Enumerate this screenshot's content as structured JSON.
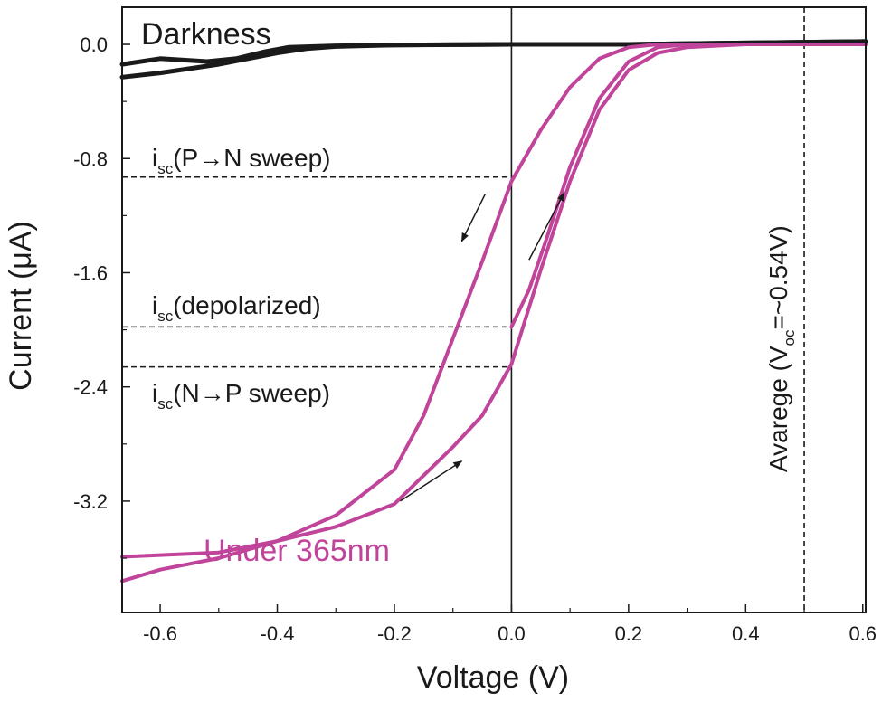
{
  "chart_data": {
    "type": "line",
    "title": "",
    "xlabel": "Voltage (V)",
    "ylabel": "Current (μA)",
    "xlim": [
      -0.665,
      0.605
    ],
    "ylim": [
      -3.98,
      0.26
    ],
    "xticks": [
      -0.6,
      -0.4,
      -0.2,
      0.0,
      0.2,
      0.4,
      0.6
    ],
    "xtick_labels": [
      "-0.6",
      "-0.4",
      "-0.2",
      "0.0",
      "0.2",
      "0.4",
      "0.6"
    ],
    "yticks": [
      0.0,
      -0.8,
      -1.6,
      -2.4,
      -3.2
    ],
    "ytick_labels": [
      "0.0",
      "-0.8",
      "-1.6",
      "-2.4",
      "-3.2"
    ],
    "grid": false,
    "colors": {
      "darkness": "#1a1a1a",
      "uv": "#c0449a"
    },
    "series": [
      {
        "label": "Darkness",
        "x": [
          -0.665,
          -0.6,
          -0.5,
          -0.45,
          -0.4,
          -0.35,
          -0.3,
          -0.2,
          -0.1,
          0.0,
          0.2,
          0.4,
          0.605
        ],
        "y": [
          -0.23,
          -0.2,
          -0.14,
          -0.1,
          -0.06,
          -0.03,
          -0.015,
          -0.005,
          -0.002,
          0.0,
          0.0,
          0.01,
          0.02
        ]
      },
      {
        "label": "Darkness",
        "x": [
          -0.665,
          -0.6,
          -0.52,
          -0.47,
          -0.42,
          -0.38,
          -0.3,
          -0.2,
          0.0,
          0.2,
          0.4,
          0.605
        ],
        "y": [
          -0.14,
          -0.1,
          -0.12,
          -0.1,
          -0.05,
          -0.02,
          -0.01,
          -0.005,
          0.0,
          0.0,
          0.01,
          0.02
        ]
      },
      {
        "label": "Under 365nm",
        "x": [
          -0.665,
          -0.6,
          -0.5,
          -0.4,
          -0.3,
          -0.2,
          -0.15,
          -0.1,
          -0.05,
          0.0,
          0.05,
          0.1,
          0.15,
          0.2,
          0.25,
          0.3,
          0.4,
          0.5,
          0.605
        ],
        "y": [
          -3.76,
          -3.68,
          -3.6,
          -3.48,
          -3.3,
          -2.98,
          -2.6,
          -2.06,
          -1.52,
          -0.96,
          -0.6,
          -0.3,
          -0.1,
          -0.02,
          0.0,
          0.0,
          0.0,
          0.0,
          0.0
        ]
      },
      {
        "label": "Under 365nm",
        "x": [
          -0.665,
          -0.5,
          -0.4,
          -0.3,
          -0.2,
          -0.1,
          -0.05,
          0.0,
          0.05,
          0.1,
          0.15,
          0.2,
          0.25,
          0.3,
          0.4,
          0.5,
          0.605
        ],
        "y": [
          -3.59,
          -3.56,
          -3.48,
          -3.38,
          -3.22,
          -2.82,
          -2.6,
          -2.24,
          -1.58,
          -0.96,
          -0.46,
          -0.18,
          -0.06,
          -0.02,
          0.0,
          0.0,
          0.0
        ]
      },
      {
        "label": "Under 365nm",
        "x": [
          0.0,
          0.03,
          0.06,
          0.1,
          0.15,
          0.2,
          0.25,
          0.3,
          0.4,
          0.5,
          0.605
        ],
        "y": [
          -1.98,
          -1.72,
          -1.36,
          -0.86,
          -0.38,
          -0.12,
          -0.02,
          0.0,
          0.0,
          0.0,
          0.0
        ]
      }
    ],
    "series_labels": {
      "darkness": "Darkness",
      "uv": "Under 365nm"
    },
    "reference_lines": {
      "horizontal": [
        {
          "y": -0.93,
          "x_from": -0.665,
          "x_to": 0.0
        },
        {
          "y": -1.98,
          "x_from": -0.665,
          "x_to": 0.0
        },
        {
          "y": -2.26,
          "x_from": -0.665,
          "x_to": 0.0
        }
      ],
      "vertical": [
        {
          "x": 0.5,
          "style": "dashed"
        },
        {
          "x": 0.0,
          "style": "solid"
        }
      ]
    },
    "annotations": {
      "isc_pn": {
        "main": "i",
        "sub": "sc",
        "rest": "(P→N sweep)"
      },
      "isc_depol": {
        "main": "i",
        "sub": "sc",
        "rest": "(depolarized)"
      },
      "isc_np": {
        "main": "i",
        "sub": "sc",
        "rest": "(N→P sweep)"
      },
      "average_voc": {
        "prefix": "Avarege (V",
        "sub": "oc",
        "suffix": "=~0.54V)"
      }
    },
    "arrows": [
      {
        "from": [
          -0.045,
          -1.05
        ],
        "to": [
          -0.085,
          -1.38
        ]
      },
      {
        "from": [
          0.03,
          -1.51
        ],
        "to": [
          0.09,
          -1.04
        ]
      },
      {
        "from": [
          -0.19,
          -3.2
        ],
        "to": [
          -0.085,
          -2.92
        ]
      }
    ]
  }
}
